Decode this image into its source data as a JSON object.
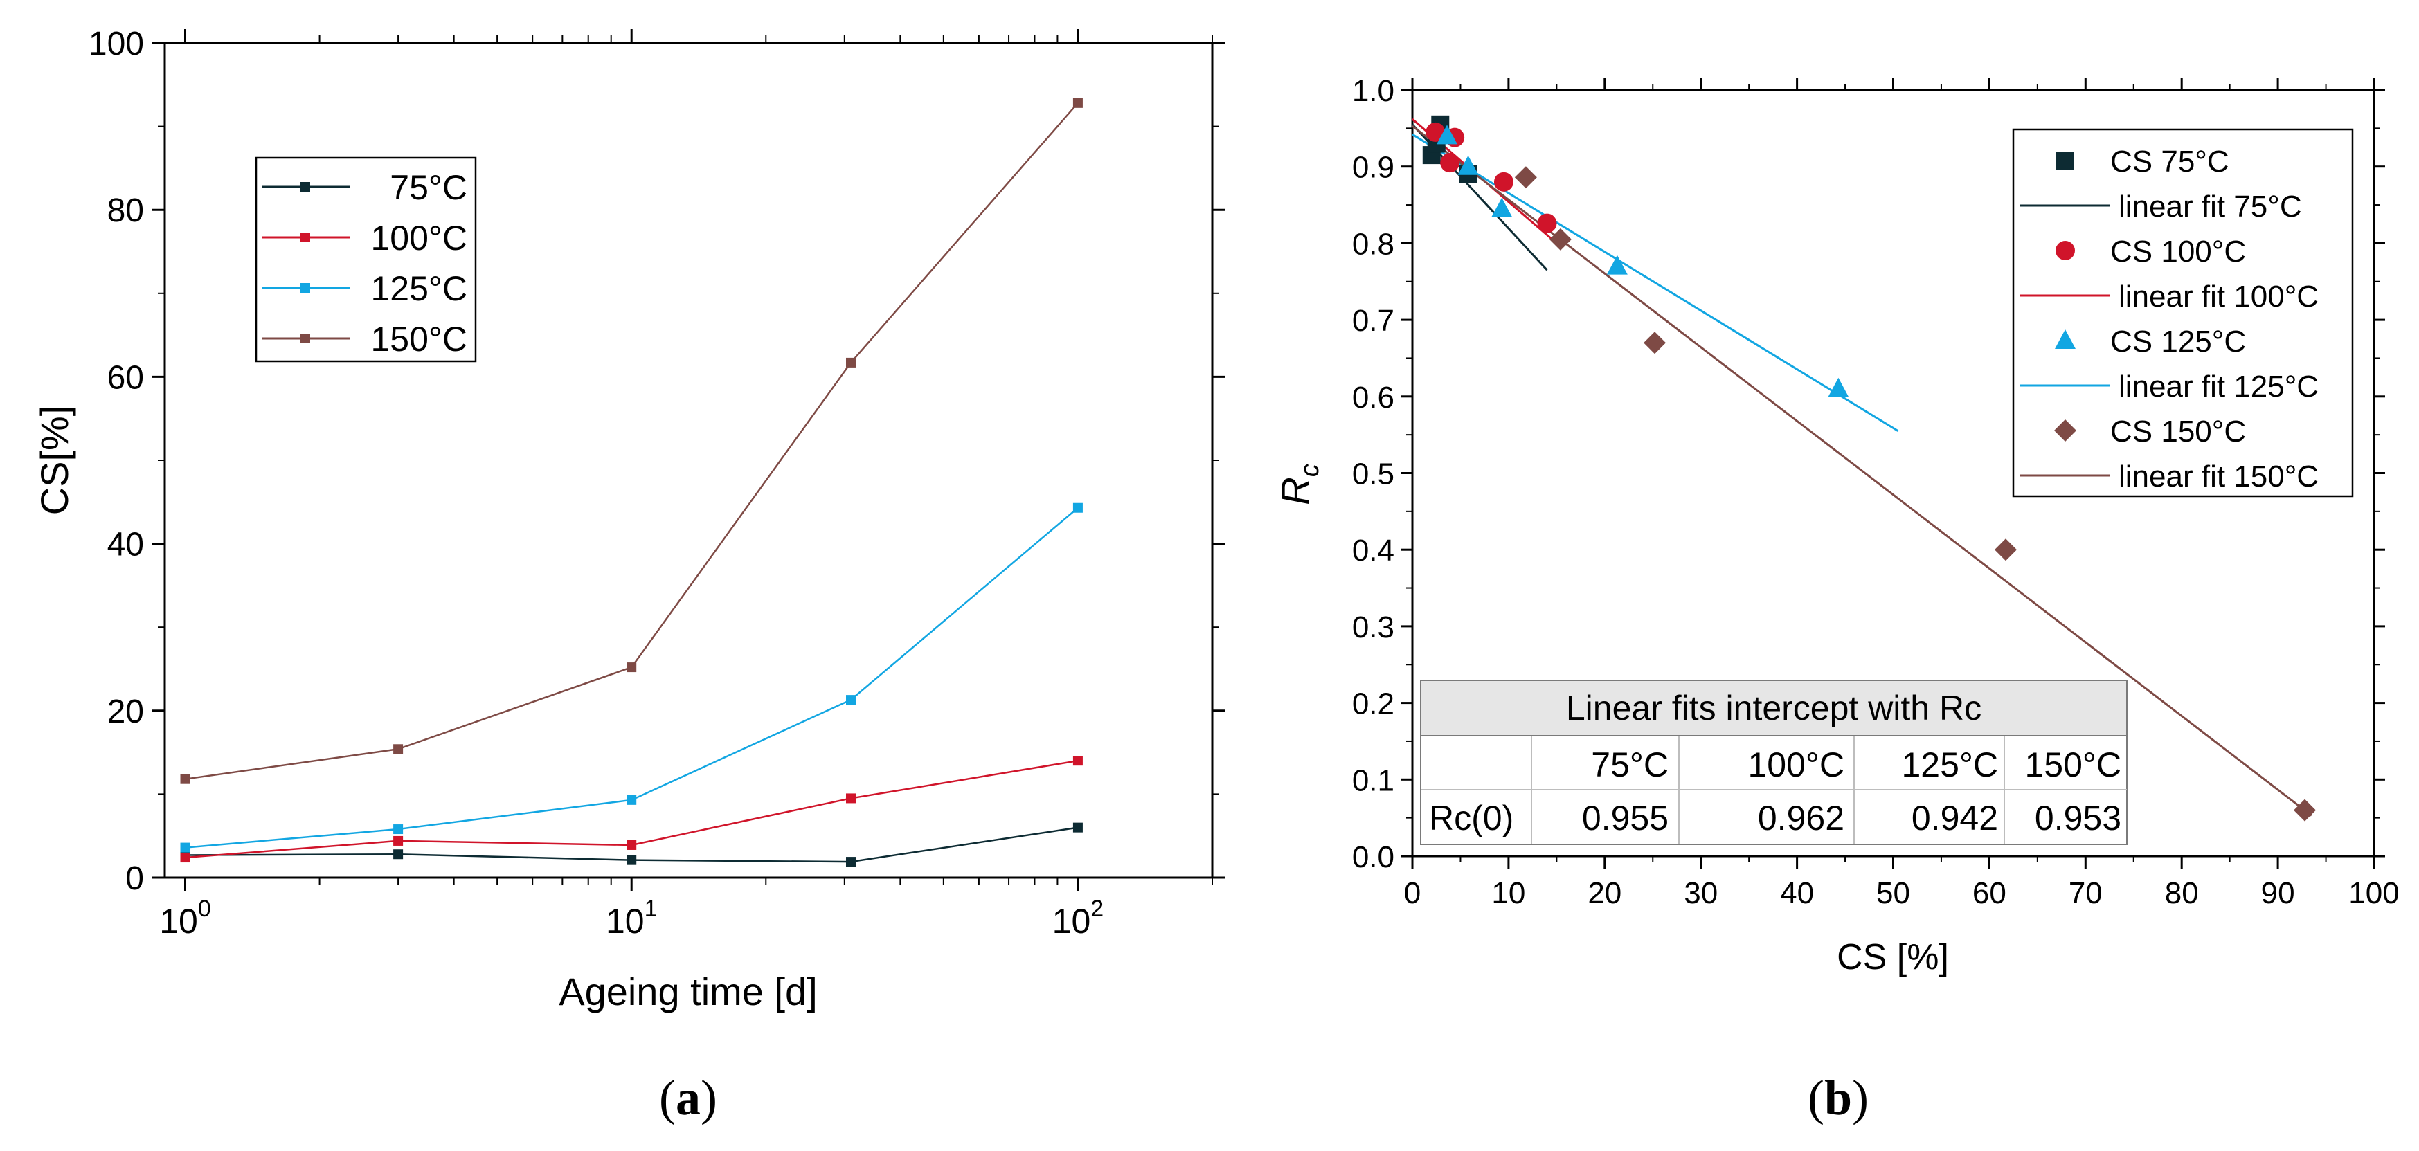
{
  "chart_data": [
    {
      "id": "a",
      "type": "line",
      "caption": {
        "open": "(",
        "letter": "a",
        "close": ")"
      },
      "xlabel": "Ageing time [d]",
      "ylabel": "CS[%]",
      "xscale": "log",
      "xlim": [
        0.9,
        200
      ],
      "ylim": [
        0,
        100
      ],
      "yticks": [
        0,
        20,
        40,
        60,
        80,
        100
      ],
      "xticks": [
        {
          "base": "10",
          "exp": "0",
          "value": 1
        },
        {
          "base": "10",
          "exp": "1",
          "value": 10
        },
        {
          "base": "10",
          "exp": "2",
          "value": 100
        }
      ],
      "x": [
        1,
        3,
        10,
        31,
        100
      ],
      "series": [
        {
          "name": "75°C",
          "color": "#0d2b33",
          "values": [
            2.7,
            2.8,
            2.1,
            1.9,
            6.0
          ]
        },
        {
          "name": "100°C",
          "color": "#d0142a",
          "values": [
            2.4,
            4.4,
            3.9,
            9.5,
            14.0
          ]
        },
        {
          "name": "125°C",
          "color": "#12a6e2",
          "values": [
            3.6,
            5.8,
            9.3,
            21.3,
            44.3
          ]
        },
        {
          "name": "150°C",
          "color": "#7e4a45",
          "values": [
            11.8,
            15.4,
            25.2,
            61.7,
            92.8
          ]
        }
      ],
      "legend_position": "top-left",
      "grid": false
    },
    {
      "id": "b",
      "type": "scatter",
      "caption": {
        "open": "(",
        "letter": "b",
        "close": ")"
      },
      "xlabel": "CS [%]",
      "ylabel": {
        "main": "R",
        "sub": "c"
      },
      "xlim": [
        0,
        100
      ],
      "ylim": [
        0,
        1.0
      ],
      "xticks": [
        0,
        10,
        20,
        30,
        40,
        50,
        60,
        70,
        80,
        90,
        100
      ],
      "yticks": [
        "0.0",
        "0.1",
        "0.2",
        "0.3",
        "0.4",
        "0.5",
        "0.6",
        "0.7",
        "0.8",
        "0.9",
        "1.0"
      ],
      "series": [
        {
          "name": "CS 75°C",
          "fit_name": "linear fit 75°C",
          "color": "#0d2b33",
          "marker": "square",
          "points": [
            [
              2.0,
              0.915
            ],
            [
              2.5,
              0.93
            ],
            [
              2.9,
              0.955
            ],
            [
              5.8,
              0.89
            ]
          ],
          "fit": {
            "x": [
              0,
              14
            ],
            "y": [
              0.955,
              0.765
            ]
          }
        },
        {
          "name": "CS 100°C",
          "fit_name": "linear fit 100°C",
          "color": "#d0142a",
          "marker": "circle",
          "points": [
            [
              2.4,
              0.945
            ],
            [
              3.9,
              0.905
            ],
            [
              4.4,
              0.938
            ],
            [
              9.5,
              0.88
            ],
            [
              14.0,
              0.826
            ]
          ],
          "fit": {
            "x": [
              0,
              15
            ],
            "y": [
              0.962,
              0.8
            ]
          }
        },
        {
          "name": "CS 125°C",
          "fit_name": "linear fit 125°C",
          "color": "#12a6e2",
          "marker": "triangle",
          "points": [
            [
              3.6,
              0.94
            ],
            [
              5.8,
              0.9
            ],
            [
              9.3,
              0.845
            ],
            [
              21.3,
              0.77
            ],
            [
              44.3,
              0.61
            ]
          ],
          "fit": {
            "x": [
              0,
              50.5
            ],
            "y": [
              0.942,
              0.555
            ]
          }
        },
        {
          "name": "CS 150°C",
          "fit_name": "linear fit 150°C",
          "color": "#7e4a45",
          "marker": "diamond",
          "points": [
            [
              11.8,
              0.886
            ],
            [
              15.4,
              0.805
            ],
            [
              25.2,
              0.67
            ],
            [
              61.7,
              0.4
            ],
            [
              92.8,
              0.06
            ]
          ],
          "fit": {
            "x": [
              0,
              93.5
            ],
            "y": [
              0.953,
              0.053
            ]
          }
        }
      ],
      "legend_position": "top-right",
      "table": {
        "title": "Linear fits intercept with Rc",
        "headers": [
          "",
          "75°C",
          "100°C",
          "125°C",
          "150°C"
        ],
        "rows": [
          [
            "Rc(0)",
            "0.955",
            "0.962",
            "0.942",
            "0.953"
          ]
        ]
      }
    }
  ]
}
